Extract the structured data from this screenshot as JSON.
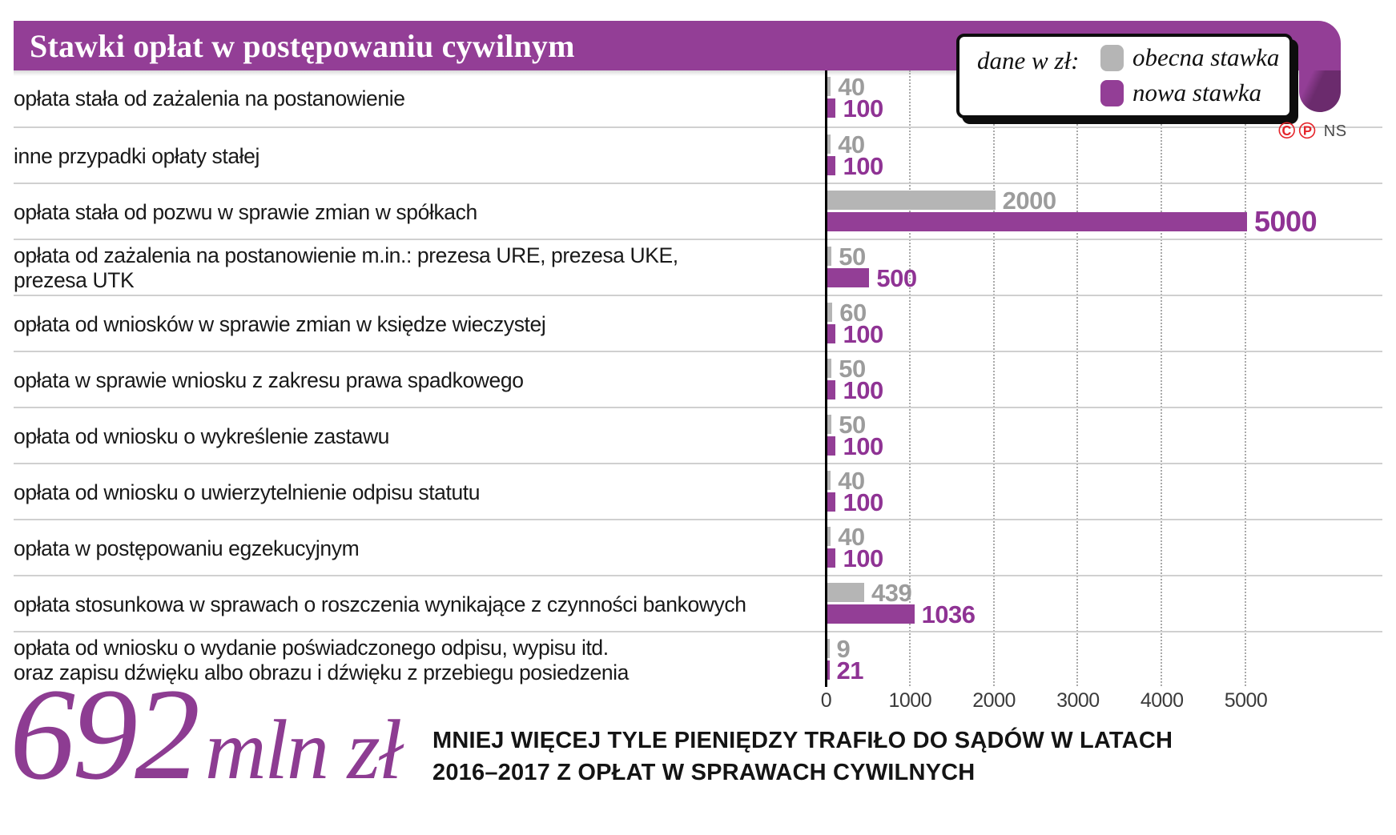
{
  "header": {
    "title": "Stawki opłat w postępowaniu cywilnym"
  },
  "legend": {
    "caption": "dane w zł:",
    "items": [
      {
        "label": "obecna stawka",
        "color": "#b5b5b5"
      },
      {
        "label": "nowa stawka",
        "color": "#933e96"
      }
    ]
  },
  "credit": {
    "copyright": "©",
    "phonogram": "℗",
    "initials": "NS"
  },
  "chart_data": {
    "type": "bar",
    "orientation": "horizontal",
    "unit": "zł",
    "series": [
      {
        "name": "obecna stawka",
        "color": "#b5b5b5"
      },
      {
        "name": "nowa stawka",
        "color": "#933e96"
      }
    ],
    "rows": [
      {
        "label": "opłata stała od zażalenia na postanowienie",
        "current": 40,
        "new": 100
      },
      {
        "label": "inne przypadki opłaty stałej",
        "current": 40,
        "new": 100
      },
      {
        "label": "opłata stała od pozwu w sprawie zmian w spółkach",
        "current": 2000,
        "new": 5000
      },
      {
        "label": "opłata od zażalenia na postanowienie m.in.: prezesa URE, prezesa UKE,\nprezesa UTK",
        "current": 50,
        "new": 500
      },
      {
        "label": "opłata od wniosków w sprawie zmian w księdze wieczystej",
        "current": 60,
        "new": 100
      },
      {
        "label": "opłata w sprawie wniosku z zakresu prawa spadkowego",
        "current": 50,
        "new": 100
      },
      {
        "label": "opłata od wniosku o wykreślenie zastawu",
        "current": 50,
        "new": 100
      },
      {
        "label": "opłata od wniosku o uwierzytelnienie odpisu statutu",
        "current": 40,
        "new": 100
      },
      {
        "label": "opłata w postępowaniu egzekucyjnym",
        "current": 40,
        "new": 100
      },
      {
        "label": "opłata stosunkowa w sprawach o roszczenia wynikające z czynności bankowych",
        "current": 439,
        "new": 1036
      },
      {
        "label": "opłata od wniosku o wydanie poświadczonego odpisu, wypisu itd.\noraz zapisu dźwięku albo obrazu i dźwięku z przebiegu posiedzenia",
        "current": 9,
        "new": 21
      }
    ],
    "xlim": [
      0,
      5000
    ],
    "x_ticks": [
      0,
      1000,
      2000,
      3000,
      4000,
      5000
    ],
    "grid": "vertical-dotted",
    "legend_position": "top-right"
  },
  "summary": {
    "big_number": "692",
    "big_unit": "mln zł",
    "line1": "MNIEJ WIĘCEJ TYLE PIENIĘDZY TRAFIŁO DO SĄDÓW W LATACH",
    "line2": "2016–2017 Z OPŁAT W SPRAWACH CYWILNYCH"
  },
  "colors": {
    "purple": "#933e96",
    "purple_dark": "#6b2b6d",
    "gray_bar": "#b5b5b5",
    "gray_label": "#9c9c9c",
    "credit_red": "#e5242a"
  }
}
